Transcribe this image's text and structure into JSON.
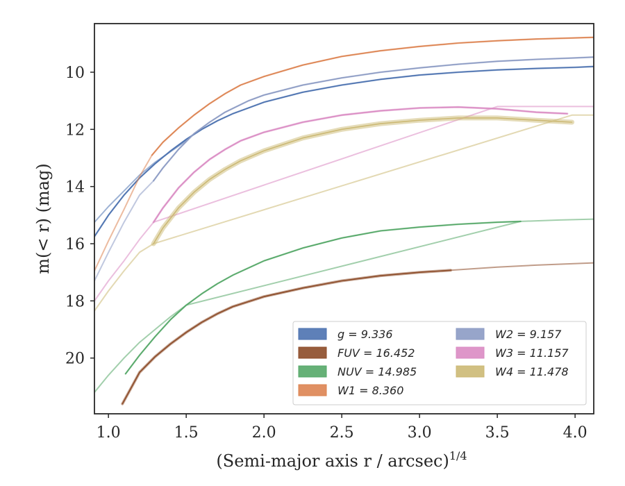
{
  "chart_data": {
    "type": "line",
    "title": "",
    "xlabel": "(Semi-major axis r / arcsec)",
    "xlabel_exponent": "1/4",
    "ylabel": "m(< r) (mag)",
    "xlim": [
      0.91,
      4.12
    ],
    "ylim": [
      21.95,
      8.3
    ],
    "y_inverted": true,
    "grid": false,
    "legend_position": "lower-right",
    "x_ticks": [
      "1.0",
      "1.5",
      "2.0",
      "2.5",
      "3.0",
      "3.5",
      "4.0"
    ],
    "y_ticks": [
      "10",
      "12",
      "14",
      "16",
      "18",
      "20"
    ],
    "series": [
      {
        "name": "g",
        "label": "g = 9.336",
        "color": "#4c72b0",
        "band": 2.5,
        "values": [
          [
            0.91,
            15.75
          ],
          [
            1.0,
            15.0
          ],
          [
            1.1,
            14.3
          ],
          [
            1.2,
            13.7
          ],
          [
            1.3,
            13.2
          ],
          [
            1.4,
            12.75
          ],
          [
            1.5,
            12.35
          ],
          [
            1.6,
            12.0
          ],
          [
            1.7,
            11.7
          ],
          [
            1.8,
            11.45
          ],
          [
            1.9,
            11.25
          ],
          [
            2.0,
            11.05
          ],
          [
            2.25,
            10.7
          ],
          [
            2.5,
            10.45
          ],
          [
            2.75,
            10.25
          ],
          [
            3.0,
            10.1
          ],
          [
            3.25,
            10.0
          ],
          [
            3.5,
            9.92
          ],
          [
            3.75,
            9.87
          ],
          [
            4.0,
            9.83
          ],
          [
            4.12,
            9.8
          ]
        ],
        "faint": [
          [
            0.91,
            15.25
          ],
          [
            1.0,
            14.7
          ],
          [
            1.1,
            14.15
          ],
          [
            1.2,
            13.6
          ],
          [
            1.3,
            13.15
          ],
          [
            1.5,
            12.4
          ]
        ]
      },
      {
        "name": "FUV",
        "label": "FUV = 16.452",
        "color": "#8c4b28",
        "band": 4,
        "values": [
          [
            1.09,
            21.6
          ],
          [
            1.15,
            21.0
          ],
          [
            1.2,
            20.5
          ],
          [
            1.3,
            19.95
          ],
          [
            1.4,
            19.5
          ],
          [
            1.5,
            19.1
          ],
          [
            1.6,
            18.75
          ],
          [
            1.7,
            18.45
          ],
          [
            1.8,
            18.2
          ],
          [
            2.0,
            17.85
          ],
          [
            2.25,
            17.55
          ],
          [
            2.5,
            17.3
          ],
          [
            2.75,
            17.12
          ],
          [
            3.0,
            17.0
          ],
          [
            3.2,
            16.93
          ]
        ],
        "faint": [
          [
            3.2,
            16.93
          ],
          [
            3.5,
            16.82
          ],
          [
            3.75,
            16.75
          ],
          [
            4.12,
            16.67
          ]
        ]
      },
      {
        "name": "NUV",
        "label": "NUV = 14.985",
        "color": "#55a868",
        "band": 2.5,
        "values": [
          [
            1.11,
            20.55
          ],
          [
            1.2,
            19.9
          ],
          [
            1.3,
            19.25
          ],
          [
            1.4,
            18.65
          ],
          [
            1.5,
            18.15
          ],
          [
            1.6,
            17.75
          ],
          [
            1.7,
            17.4
          ],
          [
            1.8,
            17.1
          ],
          [
            2.0,
            16.6
          ],
          [
            2.25,
            16.15
          ],
          [
            2.5,
            15.8
          ],
          [
            2.75,
            15.55
          ],
          [
            3.0,
            15.42
          ],
          [
            3.25,
            15.32
          ],
          [
            3.5,
            15.25
          ],
          [
            3.65,
            15.22
          ]
        ],
        "faint": [
          [
            0.91,
            21.2
          ],
          [
            1.0,
            20.6
          ],
          [
            1.1,
            20.0
          ],
          [
            1.2,
            19.45
          ],
          [
            1.3,
            19.0
          ],
          [
            1.4,
            18.55
          ],
          [
            1.5,
            18.15
          ],
          [
            3.65,
            15.22
          ],
          [
            3.9,
            15.17
          ],
          [
            4.12,
            15.14
          ]
        ]
      },
      {
        "name": "W1",
        "label": "W1 = 8.360",
        "color": "#dd8452",
        "band": 2.5,
        "values": [
          [
            1.28,
            12.9
          ],
          [
            1.35,
            12.45
          ],
          [
            1.45,
            11.95
          ],
          [
            1.55,
            11.5
          ],
          [
            1.65,
            11.1
          ],
          [
            1.75,
            10.75
          ],
          [
            1.85,
            10.45
          ],
          [
            2.0,
            10.15
          ],
          [
            2.25,
            9.75
          ],
          [
            2.5,
            9.45
          ],
          [
            2.75,
            9.25
          ],
          [
            3.0,
            9.1
          ],
          [
            3.25,
            8.98
          ],
          [
            3.5,
            8.9
          ],
          [
            3.75,
            8.84
          ],
          [
            4.0,
            8.8
          ],
          [
            4.12,
            8.78
          ]
        ],
        "faint": [
          [
            0.91,
            16.95
          ],
          [
            1.0,
            15.9
          ],
          [
            1.1,
            14.8
          ],
          [
            1.2,
            13.65
          ],
          [
            1.28,
            12.9
          ]
        ]
      },
      {
        "name": "W2",
        "label": "W2 = 9.157",
        "color": "#8c9bc4",
        "band": 2.5,
        "values": [
          [
            1.29,
            13.8
          ],
          [
            1.35,
            13.35
          ],
          [
            1.45,
            12.7
          ],
          [
            1.55,
            12.15
          ],
          [
            1.65,
            11.75
          ],
          [
            1.75,
            11.4
          ],
          [
            1.9,
            11.0
          ],
          [
            2.0,
            10.8
          ],
          [
            2.25,
            10.45
          ],
          [
            2.5,
            10.2
          ],
          [
            2.75,
            10.0
          ],
          [
            3.0,
            9.85
          ],
          [
            3.25,
            9.72
          ],
          [
            3.5,
            9.62
          ],
          [
            3.75,
            9.55
          ],
          [
            4.0,
            9.5
          ],
          [
            4.12,
            9.47
          ]
        ],
        "faint": [
          [
            0.91,
            17.3
          ],
          [
            1.0,
            16.3
          ],
          [
            1.1,
            15.25
          ],
          [
            1.2,
            14.3
          ],
          [
            1.29,
            13.8
          ]
        ]
      },
      {
        "name": "W3",
        "label": "W3 = 11.157",
        "color": "#da8bc3",
        "band": 3,
        "values": [
          [
            1.29,
            15.25
          ],
          [
            1.35,
            14.75
          ],
          [
            1.45,
            14.05
          ],
          [
            1.55,
            13.5
          ],
          [
            1.65,
            13.05
          ],
          [
            1.75,
            12.7
          ],
          [
            1.85,
            12.4
          ],
          [
            2.0,
            12.1
          ],
          [
            2.25,
            11.75
          ],
          [
            2.5,
            11.5
          ],
          [
            2.75,
            11.35
          ],
          [
            3.0,
            11.25
          ],
          [
            3.25,
            11.22
          ],
          [
            3.5,
            11.28
          ],
          [
            3.75,
            11.4
          ],
          [
            3.95,
            11.45
          ]
        ],
        "faint": [
          [
            0.91,
            18.0
          ],
          [
            1.0,
            17.3
          ],
          [
            1.1,
            16.6
          ],
          [
            1.2,
            15.85
          ],
          [
            1.29,
            15.25
          ],
          [
            3.5,
            11.2
          ],
          [
            3.75,
            11.2
          ],
          [
            4.12,
            11.2
          ]
        ]
      },
      {
        "name": "W4",
        "label": "W4 = 11.478",
        "color": "#ccb974",
        "band": 7,
        "values": [
          [
            1.29,
            16.0
          ],
          [
            1.35,
            15.45
          ],
          [
            1.45,
            14.75
          ],
          [
            1.55,
            14.2
          ],
          [
            1.65,
            13.75
          ],
          [
            1.75,
            13.4
          ],
          [
            1.85,
            13.1
          ],
          [
            2.0,
            12.75
          ],
          [
            2.25,
            12.3
          ],
          [
            2.5,
            12.0
          ],
          [
            2.75,
            11.8
          ],
          [
            3.0,
            11.68
          ],
          [
            3.25,
            11.6
          ],
          [
            3.5,
            11.6
          ],
          [
            3.75,
            11.68
          ],
          [
            3.98,
            11.75
          ]
        ],
        "faint": [
          [
            0.91,
            18.35
          ],
          [
            1.0,
            17.65
          ],
          [
            1.1,
            16.95
          ],
          [
            1.2,
            16.3
          ],
          [
            1.29,
            16.0
          ],
          [
            3.98,
            11.5
          ],
          [
            4.12,
            11.5
          ]
        ]
      }
    ]
  }
}
